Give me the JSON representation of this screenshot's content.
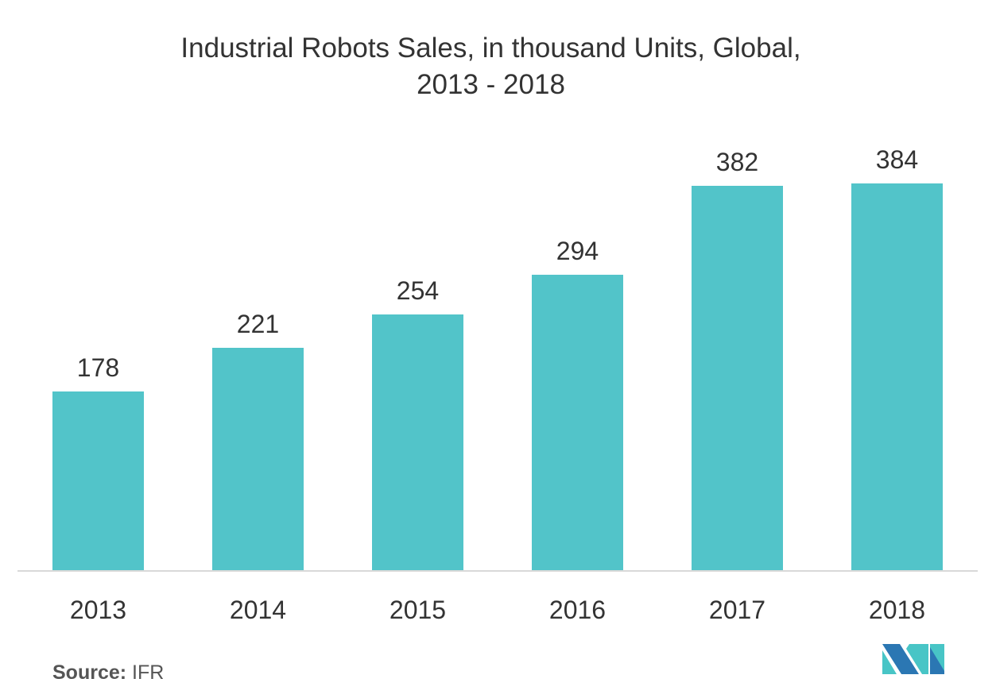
{
  "chart_data": {
    "type": "bar",
    "title": "Industrial Robots Sales, in thousand Units, Global, 2013 - 2018",
    "title_lines": [
      "Industrial Robots Sales, in thousand Units, Global,",
      "2013 - 2018"
    ],
    "categories": [
      "2013",
      "2014",
      "2015",
      "2016",
      "2017",
      "2018"
    ],
    "values": [
      178,
      221,
      254,
      294,
      382,
      384
    ],
    "xlabel": "",
    "ylabel": "",
    "ylim": [
      0,
      400
    ],
    "grid": false,
    "legend": "none",
    "data_labels": true,
    "bar_color": "#52c4c9"
  },
  "source": {
    "label": "Source:",
    "value": "IFR"
  },
  "logo": {
    "name": "mordor-intelligence-logo",
    "colors": [
      "#2b77b3",
      "#48c5c6"
    ]
  }
}
